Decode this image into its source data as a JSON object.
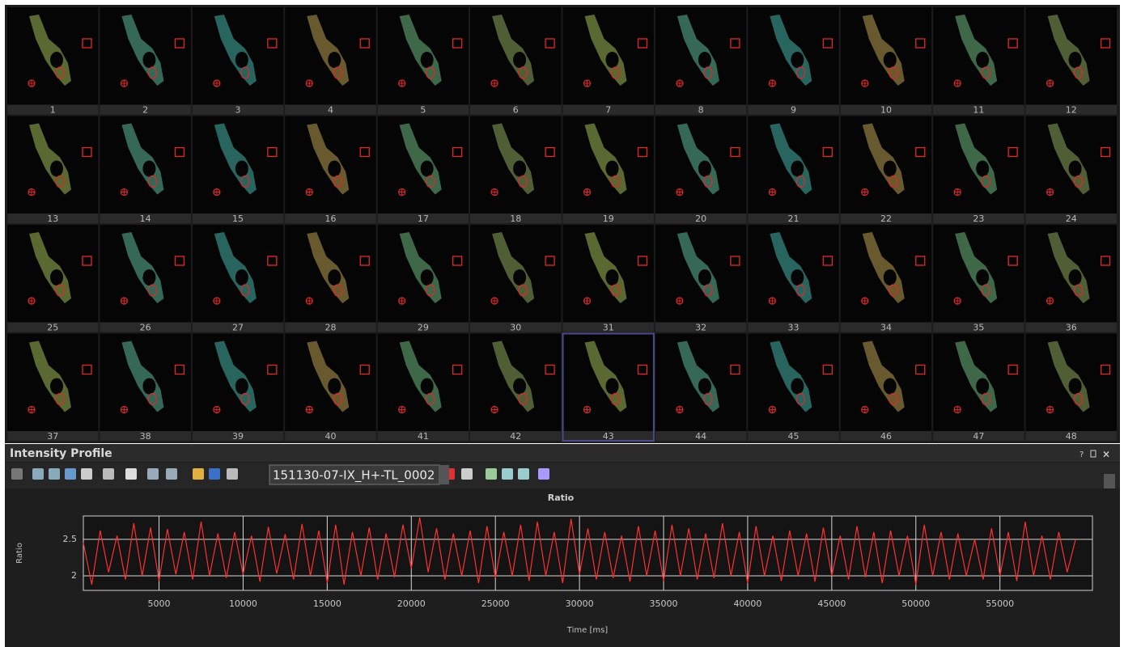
{
  "thumbnails": [
    1,
    2,
    3,
    4,
    5,
    6,
    7,
    8,
    9,
    10,
    11,
    12,
    13,
    14,
    15,
    16,
    17,
    18,
    19,
    20,
    21,
    22,
    23,
    24,
    25,
    26,
    27,
    28,
    29,
    30,
    31,
    32,
    33,
    34,
    35,
    36,
    37,
    38,
    39,
    40,
    41,
    42,
    43,
    44,
    45,
    46,
    47,
    48
  ],
  "panel": {
    "title": "Intensity Profile",
    "file": "151130-07-IX_H+-TL_0002",
    "window_buttons": [
      "?",
      "×"
    ]
  },
  "chart_data": {
    "type": "line",
    "title": "Ratio",
    "x_label": "Time [ms]",
    "y_label": "Ratio",
    "color": "#ff3030",
    "grid": true,
    "xlim": [
      500,
      60500
    ],
    "ylim": [
      1.8,
      2.82
    ],
    "xticks": [
      5000,
      10000,
      15000,
      20000,
      25000,
      30000,
      35000,
      40000,
      45000,
      50000,
      55000
    ],
    "yticks": [
      2,
      2.5
    ],
    "x": [
      500,
      1000,
      1500,
      2000,
      2500,
      3000,
      3500,
      4000,
      4500,
      5000,
      5500,
      6000,
      6500,
      7000,
      7500,
      8000,
      8500,
      9000,
      9500,
      10000,
      10500,
      11000,
      11500,
      12000,
      12500,
      13000,
      13500,
      14000,
      14500,
      15000,
      15500,
      16000,
      16500,
      17000,
      17500,
      18000,
      18500,
      19000,
      19500,
      20000,
      20500,
      21000,
      21500,
      22000,
      22500,
      23000,
      23500,
      24000,
      24500,
      25000,
      25500,
      26000,
      26500,
      27000,
      27500,
      28000,
      28500,
      29000,
      29500,
      30000,
      30500,
      31000,
      31500,
      32000,
      32500,
      33000,
      33500,
      34000,
      34500,
      35000,
      35500,
      36000,
      36500,
      37000,
      37500,
      38000,
      38500,
      39000,
      39500,
      40000,
      40500,
      41000,
      41500,
      42000,
      42500,
      43000,
      43500,
      44000,
      44500,
      45000,
      45500,
      46000,
      46500,
      47000,
      47500,
      48000,
      48500,
      49000,
      49500,
      50000,
      50500,
      51000,
      51500,
      52000,
      52500,
      53000,
      53500,
      54000,
      54500,
      55000,
      55500,
      56000,
      56500,
      57000,
      57500,
      58000,
      58500,
      59000,
      59500
    ],
    "values": [
      2.45,
      1.88,
      2.62,
      2.05,
      2.55,
      1.95,
      2.72,
      2.0,
      2.66,
      1.93,
      2.64,
      2.02,
      2.6,
      1.95,
      2.74,
      2.0,
      2.58,
      1.97,
      2.6,
      2.02,
      2.55,
      1.92,
      2.67,
      2.03,
      2.57,
      1.95,
      2.71,
      2.0,
      2.62,
      1.9,
      2.7,
      1.88,
      2.6,
      2.0,
      2.66,
      1.95,
      2.58,
      1.98,
      2.7,
      2.1,
      2.8,
      2.05,
      2.65,
      1.95,
      2.58,
      2.0,
      2.62,
      1.9,
      2.68,
      1.97,
      2.6,
      2.0,
      2.7,
      1.93,
      2.74,
      2.0,
      2.6,
      1.9,
      2.78,
      2.02,
      2.65,
      1.95,
      2.6,
      1.97,
      2.55,
      1.92,
      2.68,
      2.0,
      2.62,
      1.93,
      2.7,
      2.0,
      2.65,
      1.95,
      2.58,
      1.97,
      2.72,
      2.0,
      2.6,
      1.9,
      2.68,
      2.0,
      2.55,
      1.93,
      2.62,
      2.0,
      2.58,
      1.92,
      2.66,
      2.0,
      2.55,
      1.95,
      2.68,
      1.98,
      2.6,
      1.9,
      2.62,
      2.0,
      2.55,
      1.88,
      2.7,
      2.0,
      2.6,
      1.95,
      2.58,
      2.0,
      2.5,
      1.95,
      2.65,
      2.0,
      2.6,
      1.93,
      2.74,
      2.0,
      2.55,
      1.95,
      2.6,
      2.05,
      2.5
    ]
  }
}
